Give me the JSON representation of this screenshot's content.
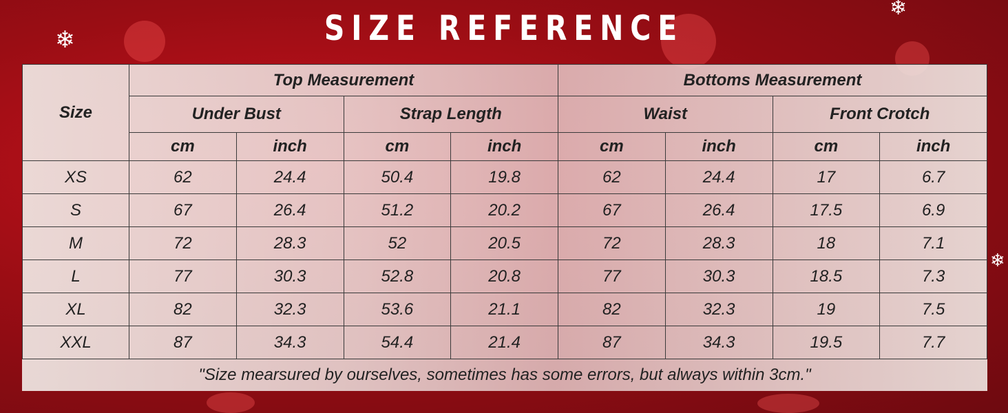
{
  "title": "SIZE REFERENCE",
  "table": {
    "size_header": "Size",
    "top_group": "Top Measurement",
    "bottom_group": "Bottoms Measurement",
    "sub_headers": [
      "Under Bust",
      "Strap Length",
      "Waist",
      "Front  Crotch"
    ],
    "unit_cm": "cm",
    "unit_inch": "inch",
    "rows": [
      [
        "XS",
        "62",
        "24.4",
        "50.4",
        "19.8",
        "62",
        "24.4",
        "17",
        "6.7"
      ],
      [
        "S",
        "67",
        "26.4",
        "51.2",
        "20.2",
        "67",
        "26.4",
        "17.5",
        "6.9"
      ],
      [
        "M",
        "72",
        "28.3",
        "52",
        "20.5",
        "72",
        "28.3",
        "18",
        "7.1"
      ],
      [
        "L",
        "77",
        "30.3",
        "52.8",
        "20.8",
        "77",
        "30.3",
        "18.5",
        "7.3"
      ],
      [
        "XL",
        "82",
        "32.3",
        "53.6",
        "21.1",
        "82",
        "32.3",
        "19",
        "7.5"
      ],
      [
        "XXL",
        "87",
        "34.3",
        "54.4",
        "21.4",
        "87",
        "34.3",
        "19.5",
        "7.7"
      ]
    ],
    "note": "\"Size mearsured by ourselves, sometimes has some errors, but always within 3cm.\""
  },
  "decor": {
    "snowflake_icon": "❄",
    "colors": {
      "background": "#9a0d14",
      "text": "#222222",
      "title": "#ffffff"
    }
  }
}
